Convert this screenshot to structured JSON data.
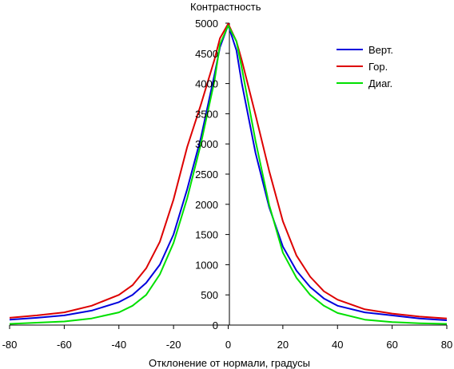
{
  "chart_data": {
    "type": "line",
    "title": "",
    "ylabel": "Контрастность",
    "xlabel": "Отклонение от нормали, градусы",
    "xlim": [
      -80,
      80
    ],
    "ylim": [
      0,
      5000
    ],
    "xticks": [
      "-80",
      "-60",
      "-40",
      "-20",
      "0",
      "20",
      "40",
      "60",
      "80"
    ],
    "yticks": [
      "0",
      "500",
      "1000",
      "1500",
      "2000",
      "2500",
      "3000",
      "3500",
      "4000",
      "4500",
      "5000"
    ],
    "grid": false,
    "legend_position": "top-right",
    "x": [
      -80,
      -70,
      -60,
      -50,
      -40,
      -35,
      -30,
      -25,
      -20,
      -15,
      -10,
      -5,
      -3,
      0,
      3,
      5,
      10,
      15,
      20,
      25,
      30,
      35,
      40,
      50,
      60,
      70,
      80
    ],
    "series": [
      {
        "name": "Верт.",
        "color": "#0000dd",
        "values": [
          90,
          120,
          160,
          240,
          380,
          500,
          700,
          1000,
          1500,
          2250,
          3100,
          4150,
          4600,
          4970,
          4550,
          4000,
          2850,
          1950,
          1300,
          900,
          630,
          440,
          320,
          210,
          160,
          110,
          80
        ]
      },
      {
        "name": "Гор.",
        "color": "#dd0000",
        "values": [
          120,
          160,
          210,
          320,
          500,
          660,
          940,
          1380,
          2080,
          2950,
          3650,
          4400,
          4750,
          4990,
          4700,
          4380,
          3480,
          2550,
          1720,
          1150,
          800,
          560,
          420,
          260,
          190,
          140,
          110
        ]
      },
      {
        "name": "Диаг.",
        "color": "#00e000",
        "values": [
          20,
          40,
          60,
          110,
          210,
          320,
          500,
          840,
          1360,
          2100,
          3000,
          4050,
          4650,
          4960,
          4700,
          4250,
          3050,
          1990,
          1200,
          780,
          500,
          320,
          200,
          90,
          50,
          30,
          20
        ]
      }
    ]
  }
}
